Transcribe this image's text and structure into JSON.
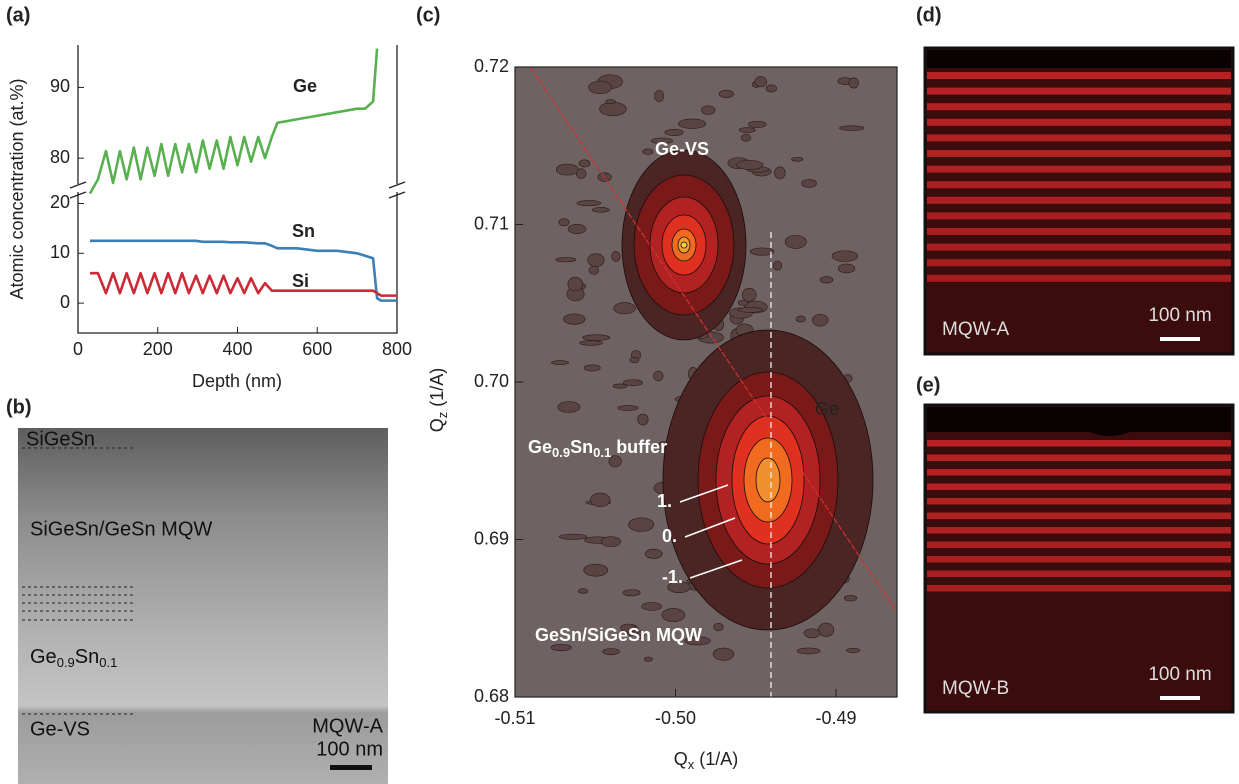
{
  "chart_data": [
    {
      "type": "line",
      "panel": "(a)",
      "x_label": "Depth (nm)",
      "y_label": "Atomic concentration (at.%)",
      "xlim": [
        0,
        800
      ],
      "xticks": [
        0,
        200,
        400,
        600,
        800
      ],
      "y_segments": [
        {
          "ylim": [
            -6,
            21.5
          ],
          "yticks": [
            0,
            10,
            20
          ]
        },
        {
          "ylim": [
            75.5,
            96
          ],
          "yticks": [
            80,
            90
          ]
        }
      ],
      "x": [
        30,
        50,
        70,
        88,
        105,
        122,
        140,
        157,
        174,
        192,
        209,
        226,
        244,
        261,
        278,
        296,
        313,
        330,
        348,
        365,
        382,
        400,
        417,
        434,
        452,
        469,
        486,
        500,
        550,
        600,
        650,
        700,
        720,
        740,
        750,
        760,
        800
      ],
      "series": [
        {
          "name": "Ge",
          "color": "#58b04f",
          "segment": 1,
          "values": [
            75,
            77,
            81,
            76.5,
            81,
            77,
            81.5,
            77,
            81.5,
            77.5,
            82,
            77.5,
            82,
            78,
            82,
            78,
            82.5,
            78.5,
            82.5,
            78.5,
            83,
            79,
            83,
            79.5,
            83,
            80,
            83,
            85,
            85.5,
            86,
            86.5,
            87,
            87,
            88,
            95.5,
            null,
            null
          ]
        },
        {
          "name": "Sn",
          "color": "#3d7fb5",
          "segment": 0,
          "values": [
            12.5,
            12.5,
            12.5,
            12.5,
            12.5,
            12.5,
            12.5,
            12.5,
            12.5,
            12.5,
            12.5,
            12.5,
            12.5,
            12.5,
            12.5,
            12.5,
            12.3,
            12.3,
            12.3,
            12.3,
            12.2,
            12.2,
            12.2,
            12.1,
            12,
            12,
            11.5,
            11,
            11,
            10.5,
            10.5,
            10,
            9.5,
            9,
            1,
            0.5,
            0.5
          ]
        },
        {
          "name": "Si",
          "color": "#cc2a36",
          "segment": 0,
          "values": [
            6,
            6,
            2,
            6,
            2,
            6,
            2,
            6,
            2,
            6,
            2,
            6,
            2,
            6,
            2,
            5.5,
            2,
            5.5,
            2,
            5.5,
            2,
            5,
            2,
            5,
            2,
            4,
            2.5,
            2.5,
            2.5,
            2.5,
            2.5,
            2.5,
            2.5,
            2.5,
            2,
            1.5,
            1.5
          ]
        }
      ]
    },
    {
      "type": "contour",
      "panel": "(c)",
      "x_label": [
        "Q",
        "x",
        " (1/A)"
      ],
      "y_label": [
        "Q",
        "z",
        " (1/A)"
      ],
      "xlim": [
        -0.51,
        -0.4862
      ],
      "xticks": [
        -0.51,
        {
          "value": -0.5,
          "label": "-0.50"
        },
        -0.49
      ],
      "ylim": [
        0.68,
        0.72
      ],
      "yticks": [
        0.68,
        0.69,
        {
          "value": 0.7,
          "label": "0.70"
        },
        0.71,
        0.72
      ],
      "annotations": [
        "Ge-VS",
        [
          "Ge",
          "0.9",
          "Sn",
          "0.1",
          " buffer"
        ],
        "1.",
        "0.",
        "-1.",
        "GeSn/SiGeSn MQW",
        "Ge"
      ]
    }
  ],
  "images": [
    {
      "panel": "(b)",
      "labels": [
        "SiGeSn",
        "SiGeSn/GeSn MQW",
        [
          "Ge",
          "0.9",
          "Sn",
          "0.1"
        ],
        "Ge-VS",
        "MQW-A",
        "100 nm"
      ]
    },
    {
      "panel": "(d)",
      "labels": [
        "MQW-A",
        "100 nm"
      ]
    },
    {
      "panel": "(e)",
      "labels": [
        "MQW-B",
        "100 nm"
      ]
    }
  ]
}
